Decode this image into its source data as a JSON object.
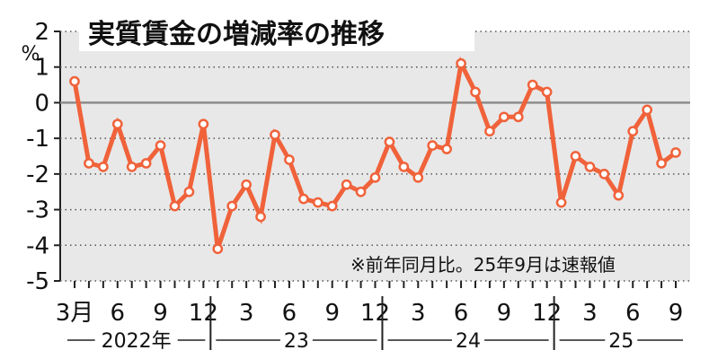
{
  "chart_data": {
    "type": "line",
    "title": "実質賃金の増減率の推移",
    "ylabel_unit": "%",
    "ylim": [
      -5,
      2
    ],
    "yticks": [
      "2",
      "1",
      "0",
      "-1",
      "-2",
      "-3",
      "-4",
      "-5"
    ],
    "xtick_labels": [
      "3月",
      "6",
      "9",
      "12",
      "3",
      "6",
      "9",
      "12",
      "3",
      "6",
      "9",
      "12",
      "3",
      "6",
      "9"
    ],
    "year_labels": [
      "2022年",
      "23",
      "24",
      "25"
    ],
    "note": "※前年同月比。25年9月は速報値",
    "grid": true,
    "colors": {
      "line": "#f0623a",
      "plot_bg": "#e8e8e8",
      "zero_line": "#8c8c8c"
    },
    "series": [
      {
        "x": [
          "2022-03",
          "2022-04",
          "2022-05",
          "2022-06",
          "2022-07",
          "2022-08",
          "2022-09",
          "2022-10",
          "2022-11",
          "2022-12",
          "2023-01",
          "2023-02",
          "2023-03",
          "2023-04",
          "2023-05",
          "2023-06",
          "2023-07",
          "2023-08",
          "2023-09",
          "2023-10",
          "2023-11",
          "2023-12",
          "2024-01",
          "2024-02",
          "2024-03",
          "2024-04",
          "2024-05",
          "2024-06",
          "2024-07",
          "2024-08",
          "2024-09",
          "2024-10",
          "2024-11",
          "2024-12",
          "2025-01",
          "2025-02",
          "2025-03",
          "2025-04",
          "2025-05",
          "2025-06",
          "2025-07",
          "2025-08",
          "2025-09"
        ],
        "values": [
          0.6,
          -1.7,
          -1.8,
          -0.6,
          -1.8,
          -1.7,
          -1.2,
          -2.9,
          -2.5,
          -0.6,
          -4.1,
          -2.9,
          -2.3,
          -3.2,
          -0.9,
          -1.6,
          -2.7,
          -2.8,
          -2.9,
          -2.3,
          -2.5,
          -2.1,
          -1.1,
          -1.8,
          -2.1,
          -1.2,
          -1.3,
          1.1,
          0.3,
          -0.8,
          -0.4,
          -0.4,
          0.5,
          0.3,
          -2.8,
          -1.5,
          -1.8,
          -2.0,
          -2.6,
          -0.8,
          -0.2,
          -1.7,
          -1.4
        ]
      }
    ]
  }
}
